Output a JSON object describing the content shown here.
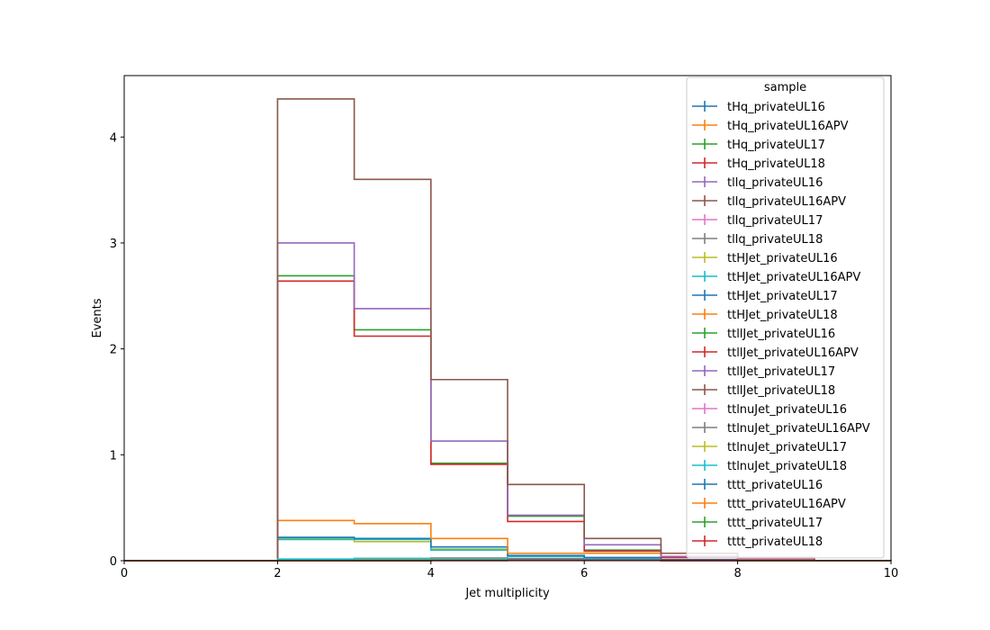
{
  "chart_data": {
    "type": "step",
    "xlabel": "Jet multiplicity",
    "ylabel": "Events",
    "xlim": [
      0,
      10
    ],
    "ylim": [
      0,
      4.58
    ],
    "x_ticks": [
      0,
      2,
      4,
      6,
      8,
      10
    ],
    "y_ticks": [
      0,
      1,
      2,
      3,
      4
    ],
    "bin_edges": [
      0,
      1,
      2,
      3,
      4,
      5,
      6,
      7,
      8,
      9,
      10
    ],
    "legend": {
      "title": "sample",
      "placement": "top-right"
    },
    "series": [
      {
        "name": "tHq_privateUL16",
        "color": "#1f77b4",
        "values": [
          0,
          0,
          0.005,
          0.008,
          0.01,
          0.008,
          0.005,
          0.003,
          0.001,
          0
        ]
      },
      {
        "name": "tHq_privateUL16APV",
        "color": "#ff7f0e",
        "values": [
          0,
          0,
          0.005,
          0.008,
          0.01,
          0.008,
          0.005,
          0.003,
          0.001,
          0
        ]
      },
      {
        "name": "tHq_privateUL17",
        "color": "#2ca02c",
        "values": [
          0,
          0,
          0.01,
          0.015,
          0.02,
          0.015,
          0.01,
          0.005,
          0.002,
          0
        ]
      },
      {
        "name": "tHq_privateUL18",
        "color": "#d62728",
        "values": [
          0,
          0,
          0.012,
          0.02,
          0.025,
          0.02,
          0.012,
          0.006,
          0.002,
          0
        ]
      },
      {
        "name": "tllq_privateUL16",
        "color": "#9467bd",
        "values": [
          0,
          0,
          0.003,
          0.005,
          0.006,
          0.005,
          0.003,
          0.002,
          0.001,
          0
        ]
      },
      {
        "name": "tllq_privateUL16APV",
        "color": "#8c564b",
        "values": [
          0,
          0,
          0.003,
          0.005,
          0.006,
          0.005,
          0.003,
          0.002,
          0.001,
          0
        ]
      },
      {
        "name": "tllq_privateUL17",
        "color": "#e377c2",
        "values": [
          0,
          0,
          0.004,
          0.006,
          0.007,
          0.006,
          0.004,
          0.002,
          0.001,
          0
        ]
      },
      {
        "name": "tllq_privateUL18",
        "color": "#7f7f7f",
        "values": [
          0,
          0,
          0.005,
          0.007,
          0.008,
          0.007,
          0.004,
          0.002,
          0.001,
          0
        ]
      },
      {
        "name": "ttHJet_privateUL16",
        "color": "#bcbd22",
        "values": [
          0,
          0,
          0.21,
          0.18,
          0.11,
          0.04,
          0.02,
          0.01,
          0.005,
          0
        ]
      },
      {
        "name": "ttHJet_privateUL16APV",
        "color": "#17becf",
        "values": [
          0,
          0,
          0.2,
          0.2,
          0.1,
          0.04,
          0.02,
          0.01,
          0.005,
          0
        ]
      },
      {
        "name": "ttHJet_privateUL17",
        "color": "#1f77b4",
        "values": [
          0,
          0,
          0.22,
          0.21,
          0.13,
          0.05,
          0.03,
          0.01,
          0.005,
          0
        ]
      },
      {
        "name": "ttHJet_privateUL18",
        "color": "#ff7f0e",
        "values": [
          0,
          0,
          0.38,
          0.35,
          0.21,
          0.07,
          0.07,
          0.04,
          0.01,
          0
        ]
      },
      {
        "name": "ttllJet_privateUL16",
        "color": "#2ca02c",
        "values": [
          0,
          0,
          2.69,
          2.18,
          0.92,
          0.42,
          0.1,
          0.03,
          0.02,
          0
        ]
      },
      {
        "name": "ttllJet_privateUL16APV",
        "color": "#d62728",
        "values": [
          0,
          0,
          2.64,
          2.12,
          0.91,
          0.37,
          0.09,
          0.03,
          0.02,
          0
        ]
      },
      {
        "name": "ttllJet_privateUL17",
        "color": "#9467bd",
        "values": [
          0,
          0,
          3.0,
          2.38,
          1.13,
          0.43,
          0.15,
          0.04,
          0.02,
          0
        ]
      },
      {
        "name": "ttllJet_privateUL18",
        "color": "#8c564b",
        "values": [
          0,
          0,
          4.36,
          3.6,
          1.71,
          0.72,
          0.21,
          0.07,
          0.03,
          0
        ]
      },
      {
        "name": "ttlnuJet_privateUL16",
        "color": "#e377c2",
        "values": [
          0,
          0,
          0.01,
          0.015,
          0.015,
          0.01,
          0.005,
          0.002,
          0.001,
          0
        ]
      },
      {
        "name": "ttlnuJet_privateUL16APV",
        "color": "#7f7f7f",
        "values": [
          0,
          0,
          0.01,
          0.015,
          0.015,
          0.01,
          0.005,
          0.002,
          0.001,
          0
        ]
      },
      {
        "name": "ttlnuJet_privateUL17",
        "color": "#bcbd22",
        "values": [
          0,
          0,
          0.012,
          0.018,
          0.018,
          0.012,
          0.006,
          0.003,
          0.001,
          0
        ]
      },
      {
        "name": "ttlnuJet_privateUL18",
        "color": "#17becf",
        "values": [
          0,
          0,
          0.015,
          0.022,
          0.022,
          0.015,
          0.008,
          0.003,
          0.001,
          0
        ]
      },
      {
        "name": "tttt_privateUL16",
        "color": "#1f77b4",
        "values": [
          0,
          0,
          0,
          0,
          0.002,
          0.004,
          0.004,
          0.003,
          0.002,
          0.001
        ]
      },
      {
        "name": "tttt_privateUL16APV",
        "color": "#ff7f0e",
        "values": [
          0,
          0,
          0,
          0,
          0.002,
          0.004,
          0.004,
          0.003,
          0.002,
          0.001
        ]
      },
      {
        "name": "tttt_privateUL17",
        "color": "#2ca02c",
        "values": [
          0,
          0,
          0,
          0,
          0.003,
          0.005,
          0.005,
          0.004,
          0.002,
          0.001
        ]
      },
      {
        "name": "tttt_privateUL18",
        "color": "#d62728",
        "values": [
          0,
          0,
          0,
          0,
          0.003,
          0.006,
          0.006,
          0.005,
          0.003,
          0.001
        ]
      }
    ]
  }
}
